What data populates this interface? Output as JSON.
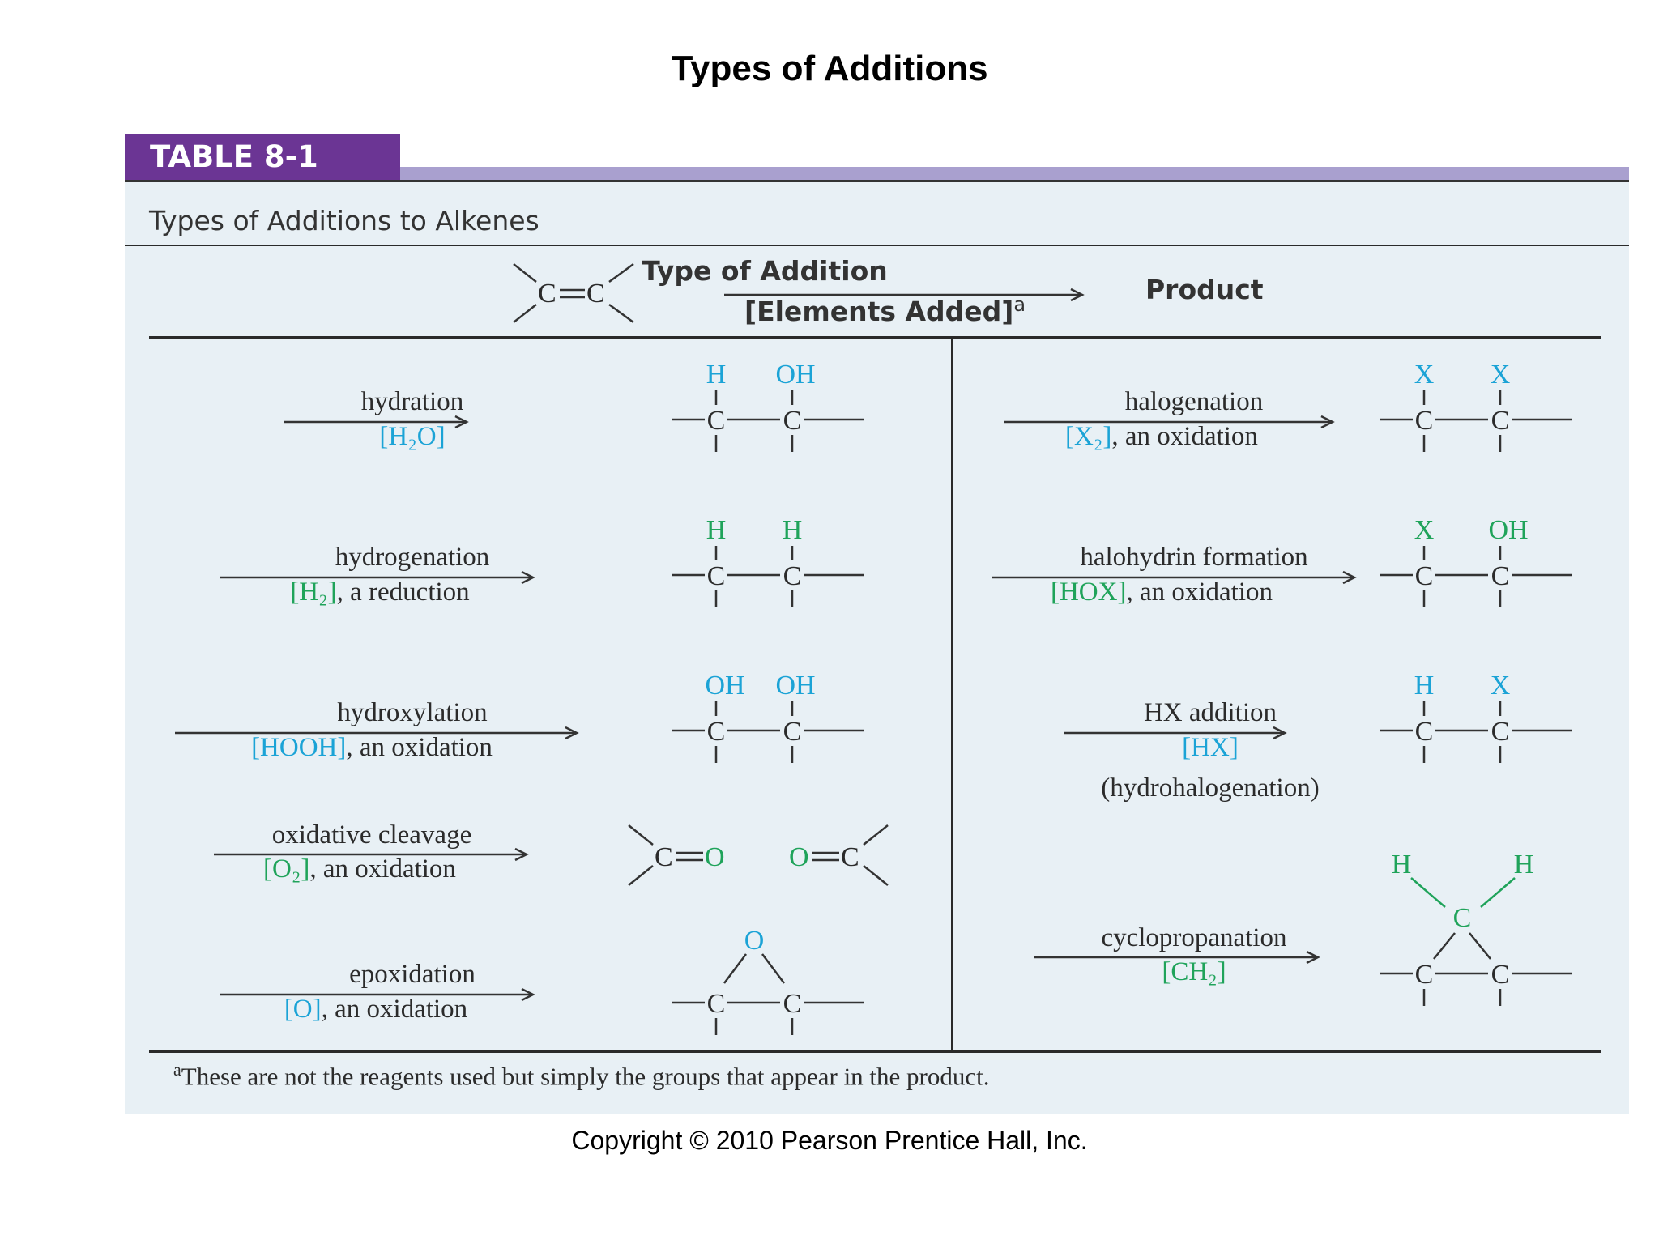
{
  "slide": {
    "title": "Types of Additions",
    "copyright": "Copyright © 2010 Pearson Prentice Hall, Inc."
  },
  "table": {
    "tab_label": "TABLE 8-1",
    "subtitle": "Types of Additions to Alkenes",
    "header": {
      "alkene": "C=C",
      "type": "Type of Addition",
      "elements": "[Elements Added]",
      "elements_note": "a",
      "product": "Product"
    },
    "rows_left": [
      {
        "name": "hydration",
        "reagent": "[H₂O]",
        "product_groups": [
          "H",
          "OH"
        ]
      },
      {
        "name": "hydrogenation",
        "reagent": "[H₂]",
        "reagent_note": ", a reduction",
        "product_groups": [
          "H",
          "H"
        ]
      },
      {
        "name": "hydroxylation",
        "reagent": "[HOOH]",
        "reagent_note": ", an oxidation",
        "product_groups": [
          "OH",
          "OH"
        ]
      },
      {
        "name": "oxidative cleavage",
        "reagent": "[O₂]",
        "reagent_note": ", an oxidation",
        "product_groups": [
          "O",
          "O"
        ]
      },
      {
        "name": "epoxidation",
        "reagent": "[O]",
        "reagent_note": ", an oxidation",
        "product_groups": [
          "O"
        ]
      }
    ],
    "rows_right": [
      {
        "name": "halogenation",
        "reagent": "[X₂]",
        "reagent_note": ", an oxidation",
        "product_groups": [
          "X",
          "X"
        ]
      },
      {
        "name": "halohydrin formation",
        "reagent": "[HOX]",
        "reagent_note": ", an oxidation",
        "product_groups": [
          "X",
          "OH"
        ]
      },
      {
        "name": "HX addition",
        "reagent": "[HX]",
        "extra": "(hydrohalogenation)",
        "product_groups": [
          "H",
          "X"
        ]
      },
      {
        "name": "cyclopropanation",
        "reagent": "[CH₂]",
        "product_groups": [
          "H",
          "H",
          "C"
        ]
      }
    ],
    "footnote_mark": "a",
    "footnote": "These are not the reagents used but simply the groups that appear in the product.",
    "colors": {
      "tab": "#6b3594",
      "band": "#a9a0cf",
      "panel": "#e8f0f5",
      "blue": "#1ba3d6",
      "green": "#1fa35a"
    }
  }
}
